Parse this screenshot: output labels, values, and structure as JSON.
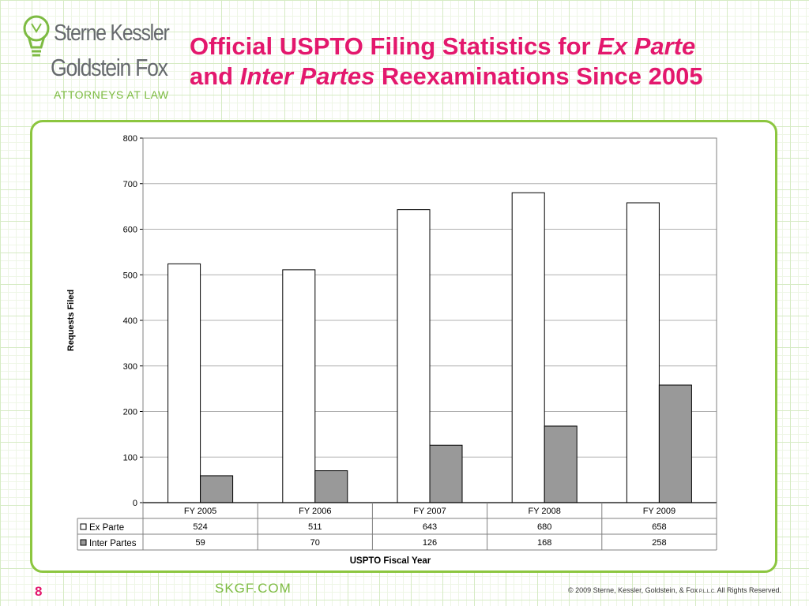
{
  "logo": {
    "line1": "Sterne Kessler",
    "line2": "Goldstein Fox",
    "sub": "ATTORNEYS AT LAW"
  },
  "slide_title": {
    "line1_pre": "Official USPTO Filing Statistics for ",
    "line1_em": "Ex Parte",
    "line2_pre": "and ",
    "line2_em": "Inter Partes",
    "line2_post": " Reexaminations Since 2005"
  },
  "footer": {
    "page_number": "8",
    "site": "SKGF.COM",
    "copyright": "© 2009 Sterne, Kessler, Goldstein, & Fox",
    "copyright_small": " P.L.L.C. ",
    "copyright_end": "All Rights Reserved."
  },
  "colors": {
    "accent": "#e3186d",
    "brand_green": "#8cc63f",
    "ex_parte_fill": "#ffffff",
    "inter_partes_fill": "#999999"
  },
  "chart_data": {
    "type": "bar",
    "categories": [
      "FY 2005",
      "FY 2006",
      "FY 2007",
      "FY 2008",
      "FY 2009"
    ],
    "series": [
      {
        "name": "Ex Parte",
        "values": [
          524,
          511,
          643,
          680,
          658
        ],
        "color": "#ffffff"
      },
      {
        "name": "Inter Partes",
        "values": [
          59,
          70,
          126,
          168,
          258
        ],
        "color": "#999999"
      }
    ],
    "xlabel": "USPTO Fiscal Year",
    "ylabel": "Requests Filed",
    "ylim": [
      0,
      800
    ],
    "yticks": [
      0,
      100,
      200,
      300,
      400,
      500,
      600,
      700,
      800
    ],
    "grid": true,
    "data_table": true
  }
}
